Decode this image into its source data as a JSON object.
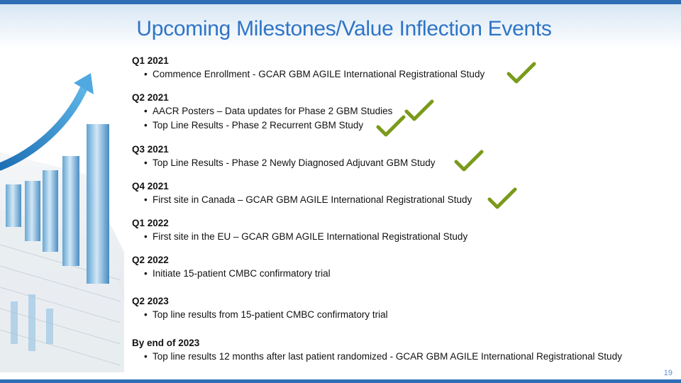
{
  "title": "Upcoming Milestones/Value Inflection Events",
  "page_number": "19",
  "accent_color": "#2e74c6",
  "check_color": "#7a9a1b",
  "milestones": [
    {
      "period": "Q1 2021",
      "items": [
        {
          "text": "Commence Enrollment - GCAR GBM AGILE International Registrational Study",
          "completed": true
        }
      ]
    },
    {
      "period": "Q2 2021",
      "items": [
        {
          "text": "AACR Posters – Data updates for Phase 2 GBM Studies",
          "completed": true
        },
        {
          "text": "Top Line Results - Phase 2 Recurrent GBM Study",
          "completed": true
        }
      ]
    },
    {
      "period": "Q3 2021",
      "items": [
        {
          "text": "Top Line Results - Phase 2 Newly Diagnosed Adjuvant GBM Study",
          "completed": true
        }
      ]
    },
    {
      "period": "Q4 2021",
      "items": [
        {
          "text": "First site in Canada – GCAR GBM AGILE International Registrational Study",
          "completed": true
        }
      ]
    },
    {
      "period": "Q1 2022",
      "items": [
        {
          "text": "First site in the EU – GCAR GBM AGILE International Registrational Study",
          "completed": false
        }
      ]
    },
    {
      "period": "Q2 2022",
      "items": [
        {
          "text": "Initiate 15-patient CMBC confirmatory trial",
          "completed": false
        }
      ]
    },
    {
      "period": "Q2 2023",
      "items": [
        {
          "text": "Top line results from 15-patient CMBC confirmatory trial",
          "completed": false
        }
      ]
    },
    {
      "period": "By end of 2023",
      "items": [
        {
          "text": "Top line results 12 months after last patient randomized - GCAR GBM AGILE International Registrational Study",
          "completed": false
        }
      ]
    }
  ],
  "decorative_image": "rising-bar-chart-with-arrow-illustration"
}
